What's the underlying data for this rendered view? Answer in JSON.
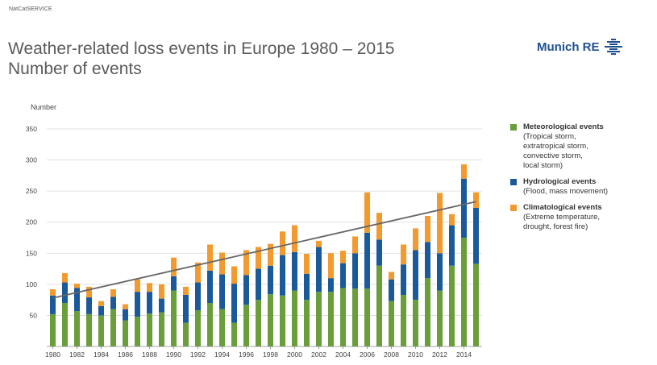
{
  "header": {
    "kicker": "NatCatSERVICE",
    "title_line1": "Weather-related loss events in Europe 1980 – 2015",
    "title_line2": "Number of events",
    "brand": "Munich RE"
  },
  "legend": [
    {
      "name": "Meteorological events",
      "desc_lines": [
        "(Tropical storm,",
        "extratropical storm,",
        "convective storm,",
        "local storm)"
      ],
      "color": "#6a9e3a"
    },
    {
      "name": "Hydrological events",
      "desc_lines": [
        "(Flood, mass movement)"
      ],
      "color": "#1a5a9a"
    },
    {
      "name": "Climatological events",
      "desc_lines": [
        "(Extreme temperature,",
        "drought, forest fire)"
      ],
      "color": "#f29a2e"
    }
  ],
  "chart_data": {
    "type": "bar",
    "stacked": true,
    "ylabel": "Number",
    "ylim": [
      0,
      350
    ],
    "yticks": [
      50,
      100,
      150,
      200,
      250,
      300,
      350
    ],
    "grid": true,
    "legend_position": "right",
    "categories": [
      "1980",
      "1981",
      "1982",
      "1983",
      "1984",
      "1985",
      "1986",
      "1987",
      "1988",
      "1989",
      "1990",
      "1991",
      "1992",
      "1993",
      "1994",
      "1995",
      "1996",
      "1997",
      "1998",
      "1999",
      "2000",
      "2001",
      "2002",
      "2003",
      "2004",
      "2005",
      "2006",
      "2007",
      "2008",
      "2009",
      "2010",
      "2011",
      "2012",
      "2013",
      "2014",
      "2015"
    ],
    "xtick_labels": [
      "1980",
      "1982",
      "1984",
      "1986",
      "1988",
      "1990",
      "1992",
      "1994",
      "1996",
      "1998",
      "2000",
      "2002",
      "2004",
      "2006",
      "2008",
      "2010",
      "2012",
      "2014"
    ],
    "series": [
      {
        "name": "Meteorological events",
        "color": "#6a9e3a",
        "values": [
          52,
          70,
          57,
          52,
          50,
          60,
          42,
          48,
          53,
          55,
          90,
          38,
          58,
          70,
          60,
          38,
          67,
          75,
          84,
          82,
          90,
          75,
          88,
          88,
          94,
          93,
          93,
          130,
          73,
          83,
          75,
          110,
          90,
          130,
          175,
          133
        ]
      },
      {
        "name": "Hydrological events",
        "color": "#1a5a9a",
        "values": [
          30,
          33,
          37,
          27,
          15,
          20,
          18,
          40,
          35,
          22,
          23,
          45,
          45,
          52,
          56,
          63,
          48,
          50,
          46,
          65,
          62,
          42,
          72,
          22,
          40,
          57,
          90,
          42,
          35,
          49,
          80,
          58,
          60,
          65,
          95,
          90
        ]
      },
      {
        "name": "Climatological events",
        "color": "#f29a2e",
        "values": [
          10,
          15,
          7,
          17,
          8,
          12,
          8,
          20,
          14,
          23,
          30,
          13,
          32,
          42,
          35,
          28,
          40,
          35,
          35,
          38,
          43,
          32,
          10,
          40,
          20,
          27,
          65,
          43,
          12,
          32,
          35,
          42,
          97,
          18,
          23,
          25
        ]
      }
    ],
    "trend_line": {
      "from": [
        1980,
        78
      ],
      "to": [
        2015,
        233
      ],
      "color": "#666666"
    }
  }
}
